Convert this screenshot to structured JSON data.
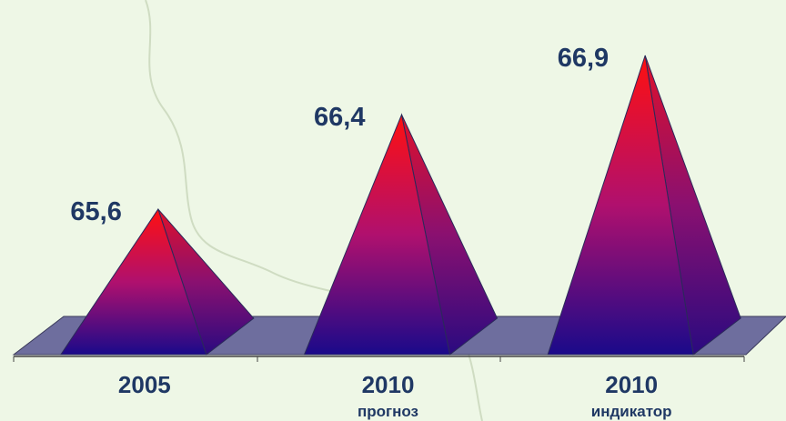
{
  "chart_data": {
    "type": "pyramid",
    "categories": [
      "2005",
      "2010",
      "2010"
    ],
    "sublabels": [
      null,
      "прогноз",
      "индикатор"
    ],
    "values": [
      65.6,
      66.4,
      66.9
    ],
    "value_labels": [
      "65,6",
      "66,4",
      "66,9"
    ],
    "ylim": [
      64.37,
      67.2
    ],
    "colors": {
      "top": "#ff1010",
      "middle": "#b0106e",
      "bottom": "#1a0a8a"
    }
  }
}
